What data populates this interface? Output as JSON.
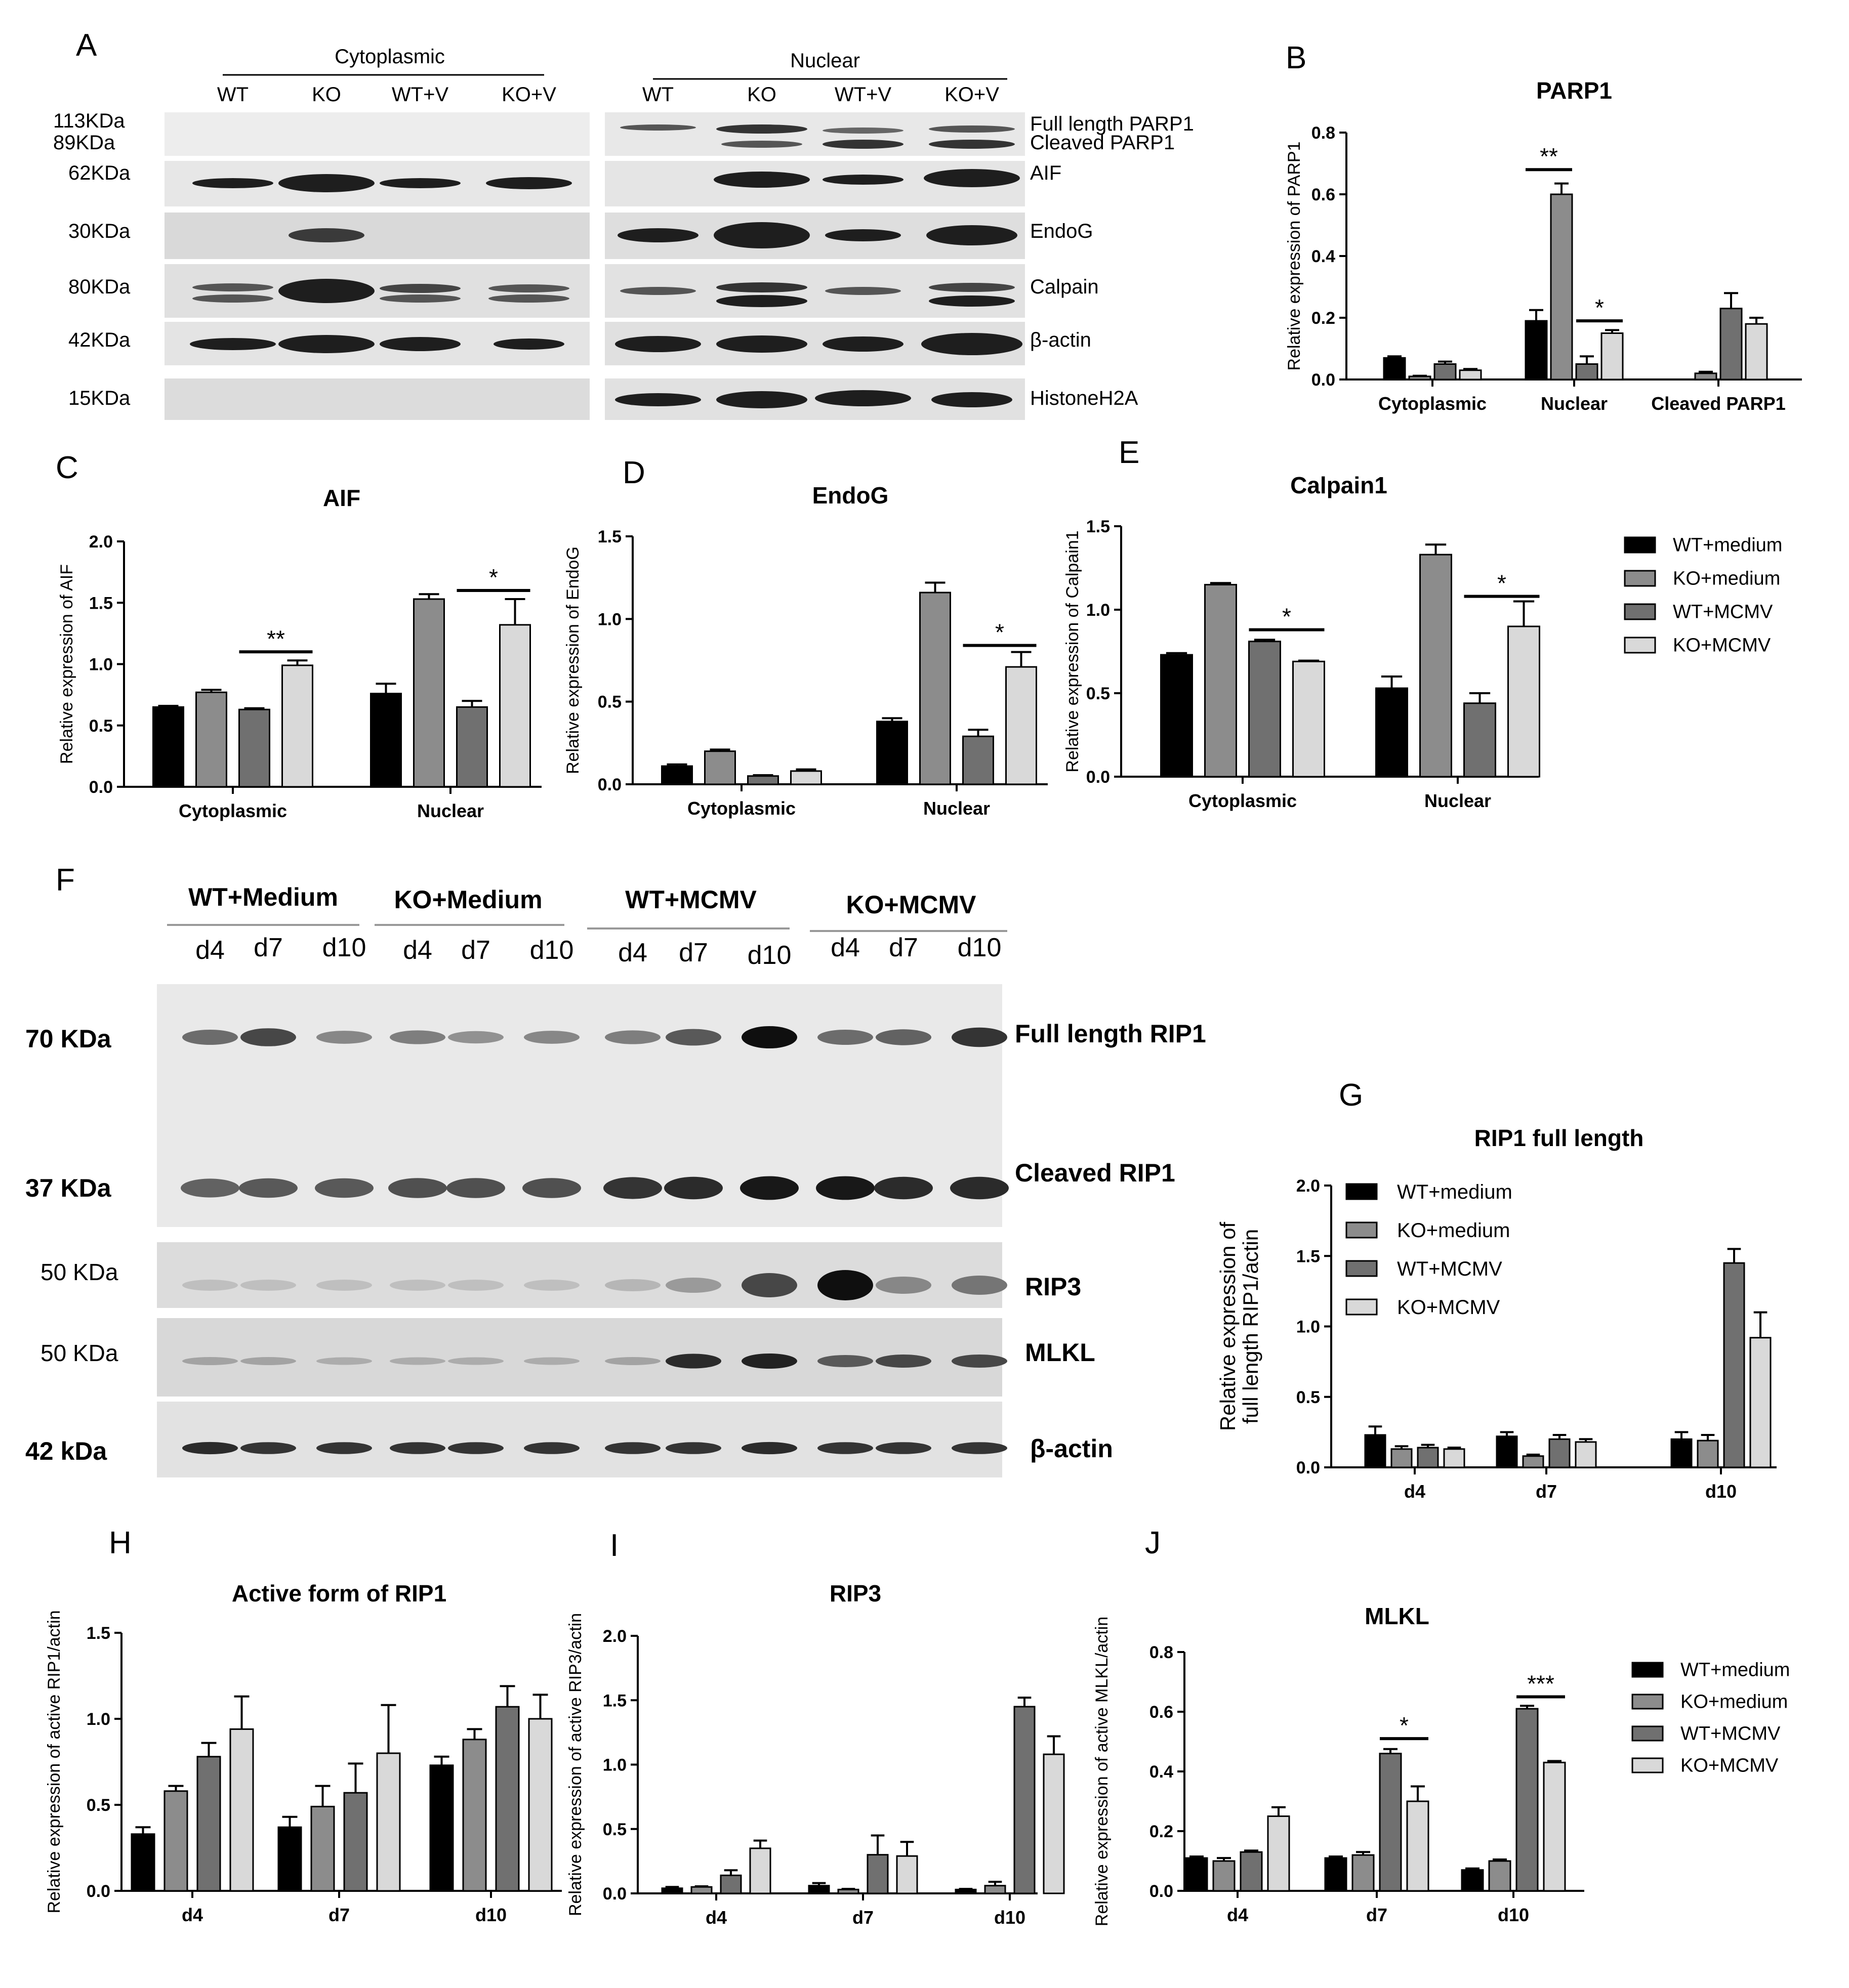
{
  "colors": {
    "wt_medium": "#000000",
    "ko_medium": "#8c8c8c",
    "wt_mcmv": "#707070",
    "ko_mcmv": "#d9d9d9"
  },
  "legend_labels": [
    "WT+medium",
    "KO+medium",
    "WT+MCMV",
    "KO+MCMV"
  ],
  "blotA": {
    "panel": "A",
    "cyto_header": "Cytoplasmic",
    "nuc_header": "Nuclear",
    "lanes": [
      "WT",
      "KO",
      "WT+V",
      "KO+V"
    ],
    "mw": [
      "113KDa",
      "89KDa",
      "62KDa",
      "30KDa",
      "80KDa",
      "42KDa",
      "15KDa"
    ],
    "proteins": [
      "Full length PARP1",
      "Cleaved PARP1",
      "AIF",
      "EndoG",
      "Calpain",
      "β-actin",
      "HistoneH2A"
    ]
  },
  "blotF": {
    "panel": "F",
    "groups": [
      "WT+Medium",
      "KO+Medium",
      "WT+MCMV",
      "KO+MCMV"
    ],
    "days": [
      "d4",
      "d7",
      "d10",
      "d4",
      "d7",
      "d10",
      "d4",
      "d7",
      "d10",
      "d4",
      "d7",
      "d10"
    ],
    "mw": [
      "70 KDa",
      "37 KDa",
      "50 KDa",
      "50 KDa",
      "42 kDa"
    ],
    "proteins": [
      "Full length RIP1",
      "Cleaved RIP1",
      "RIP3",
      "MLKL",
      "β-actin"
    ]
  },
  "chart_data": [
    {
      "panel": "B",
      "type": "bar",
      "title": "PARP1",
      "ylabel": "Relative expression of PARP1",
      "categories": [
        "Cytoplasmic",
        "Nuclear",
        "Cleaved PARP1"
      ],
      "ylim": [
        0,
        0.8
      ],
      "yticks": [
        0.0,
        0.2,
        0.4,
        0.6,
        0.8
      ],
      "ytick_labels": [
        "0.0",
        "0.2",
        "0.4",
        "0.6",
        "0.8"
      ],
      "series": [
        {
          "name": "WT+medium",
          "values": [
            0.07,
            0.19,
            0.0
          ],
          "errors": [
            0.005,
            0.035,
            0.0
          ]
        },
        {
          "name": "KO+medium",
          "values": [
            0.01,
            0.6,
            0.02
          ],
          "errors": [
            0.002,
            0.035,
            0.005
          ]
        },
        {
          "name": "WT+MCMV",
          "values": [
            0.05,
            0.05,
            0.23
          ],
          "errors": [
            0.008,
            0.025,
            0.05
          ]
        },
        {
          "name": "KO+MCMV",
          "values": [
            0.03,
            0.15,
            0.18
          ],
          "errors": [
            0.004,
            0.01,
            0.02
          ]
        }
      ],
      "annotations": [
        {
          "text": "**",
          "category": 1,
          "from": 0,
          "to": 1,
          "y": 0.68
        },
        {
          "text": "*",
          "category": 1,
          "from": 2,
          "to": 3,
          "y": 0.19
        }
      ]
    },
    {
      "panel": "C",
      "type": "bar",
      "title": "AIF",
      "ylabel": "Relative expression of AIF",
      "categories": [
        "Cytoplasmic",
        "Nuclear"
      ],
      "ylim": [
        0,
        2.0
      ],
      "yticks": [
        0.0,
        0.5,
        1.0,
        1.5,
        2.0
      ],
      "ytick_labels": [
        "0.0",
        "0.5",
        "1.0",
        "1.5",
        "2.0"
      ],
      "series": [
        {
          "name": "WT+medium",
          "values": [
            0.65,
            0.76
          ],
          "errors": [
            0.01,
            0.08
          ]
        },
        {
          "name": "KO+medium",
          "values": [
            0.77,
            1.53
          ],
          "errors": [
            0.02,
            0.04
          ]
        },
        {
          "name": "WT+MCMV",
          "values": [
            0.63,
            0.65
          ],
          "errors": [
            0.01,
            0.05
          ]
        },
        {
          "name": "KO+MCMV",
          "values": [
            0.99,
            1.32
          ],
          "errors": [
            0.04,
            0.21
          ]
        }
      ],
      "annotations": [
        {
          "text": "**",
          "category": 0,
          "from": 2,
          "to": 3,
          "y": 1.1
        },
        {
          "text": "*",
          "category": 1,
          "from": 2,
          "to": 3,
          "y": 1.6
        }
      ]
    },
    {
      "panel": "D",
      "type": "bar",
      "title": "EndoG",
      "ylabel": "Relative expression of EndoG",
      "categories": [
        "Cytoplasmic",
        "Nuclear"
      ],
      "ylim": [
        0,
        1.5
      ],
      "yticks": [
        0.0,
        0.5,
        1.0,
        1.5
      ],
      "ytick_labels": [
        "0.0",
        "0.5",
        "1.0",
        "1.5"
      ],
      "series": [
        {
          "name": "WT+medium",
          "values": [
            0.11,
            0.38
          ],
          "errors": [
            0.01,
            0.02
          ]
        },
        {
          "name": "KO+medium",
          "values": [
            0.2,
            1.16
          ],
          "errors": [
            0.01,
            0.06
          ]
        },
        {
          "name": "WT+MCMV",
          "values": [
            0.05,
            0.29
          ],
          "errors": [
            0.005,
            0.04
          ]
        },
        {
          "name": "KO+MCMV",
          "values": [
            0.08,
            0.71
          ],
          "errors": [
            0.01,
            0.09
          ]
        }
      ],
      "annotations": [
        {
          "text": "*",
          "category": 1,
          "from": 2,
          "to": 3,
          "y": 0.84
        }
      ]
    },
    {
      "panel": "E",
      "type": "bar",
      "title": "Calpain1",
      "ylabel": "Relative expression of Calpain1",
      "categories": [
        "Cytoplasmic",
        "Nuclear"
      ],
      "ylim": [
        0,
        1.5
      ],
      "yticks": [
        0.0,
        0.5,
        1.0,
        1.5
      ],
      "ytick_labels": [
        "0.0",
        "0.5",
        "1.0",
        "1.5"
      ],
      "series": [
        {
          "name": "WT+medium",
          "values": [
            0.73,
            0.53
          ],
          "errors": [
            0.01,
            0.07
          ]
        },
        {
          "name": "KO+medium",
          "values": [
            1.15,
            1.33
          ],
          "errors": [
            0.01,
            0.06
          ]
        },
        {
          "name": "WT+MCMV",
          "values": [
            0.81,
            0.44
          ],
          "errors": [
            0.01,
            0.06
          ]
        },
        {
          "name": "KO+MCMV",
          "values": [
            0.69,
            0.9
          ],
          "errors": [
            0.005,
            0.15
          ]
        }
      ],
      "annotations": [
        {
          "text": "*",
          "category": 0,
          "from": 2,
          "to": 3,
          "y": 0.88
        },
        {
          "text": "*",
          "category": 1,
          "from": 2,
          "to": 3,
          "y": 1.08
        }
      ]
    },
    {
      "panel": "G",
      "type": "bar",
      "title": "RIP1 full length",
      "ylabel": "Relative expression of full length RIP1/actin",
      "categories": [
        "d4",
        "d7",
        "d10"
      ],
      "ylim": [
        0,
        2.0
      ],
      "yticks": [
        0.0,
        0.5,
        1.0,
        1.5,
        2.0
      ],
      "ytick_labels": [
        "0.0",
        "0.5",
        "1.0",
        "1.5",
        "2.0"
      ],
      "series": [
        {
          "name": "WT+medium",
          "values": [
            0.23,
            0.22,
            0.2
          ],
          "errors": [
            0.06,
            0.03,
            0.05
          ]
        },
        {
          "name": "KO+medium",
          "values": [
            0.13,
            0.08,
            0.19
          ],
          "errors": [
            0.02,
            0.01,
            0.04
          ]
        },
        {
          "name": "WT+MCMV",
          "values": [
            0.14,
            0.2,
            1.45
          ],
          "errors": [
            0.02,
            0.03,
            0.1
          ]
        },
        {
          "name": "KO+MCMV",
          "values": [
            0.13,
            0.18,
            0.92
          ],
          "errors": [
            0.01,
            0.02,
            0.18
          ]
        }
      ],
      "annotations": []
    },
    {
      "panel": "H",
      "type": "bar",
      "title": "Active form of RIP1",
      "ylabel": "Relative expression of active RIP1/actin",
      "categories": [
        "d4",
        "d7",
        "d10"
      ],
      "ylim": [
        0,
        1.5
      ],
      "yticks": [
        0.0,
        0.5,
        1.0,
        1.5
      ],
      "ytick_labels": [
        "0.0",
        "0.5",
        "1.0",
        "1.5"
      ],
      "series": [
        {
          "name": "WT+medium",
          "values": [
            0.33,
            0.37,
            0.73
          ],
          "errors": [
            0.04,
            0.06,
            0.05
          ]
        },
        {
          "name": "KO+medium",
          "values": [
            0.58,
            0.49,
            0.88
          ],
          "errors": [
            0.03,
            0.12,
            0.06
          ]
        },
        {
          "name": "WT+MCMV",
          "values": [
            0.78,
            0.57,
            1.07
          ],
          "errors": [
            0.08,
            0.17,
            0.12
          ]
        },
        {
          "name": "KO+MCMV",
          "values": [
            0.94,
            0.8,
            1.0
          ],
          "errors": [
            0.19,
            0.28,
            0.14
          ]
        }
      ],
      "annotations": []
    },
    {
      "panel": "I",
      "type": "bar",
      "title": "RIP3",
      "ylabel": "Relative expression of active RIP3/actin",
      "categories": [
        "d4",
        "d7",
        "d10"
      ],
      "ylim": [
        0,
        2.0
      ],
      "yticks": [
        0.0,
        0.5,
        1.0,
        1.5,
        2.0
      ],
      "ytick_labels": [
        "0.0",
        "0.5",
        "1.0",
        "1.5",
        "2.0"
      ],
      "series": [
        {
          "name": "WT+medium",
          "values": [
            0.04,
            0.06,
            0.03
          ],
          "errors": [
            0.01,
            0.02,
            0.005
          ]
        },
        {
          "name": "KO+medium",
          "values": [
            0.05,
            0.03,
            0.06
          ],
          "errors": [
            0.005,
            0.005,
            0.03
          ]
        },
        {
          "name": "WT+MCMV",
          "values": [
            0.14,
            0.3,
            1.45
          ],
          "errors": [
            0.04,
            0.15,
            0.07
          ]
        },
        {
          "name": "KO+MCMV",
          "values": [
            0.35,
            0.29,
            1.08
          ],
          "errors": [
            0.06,
            0.11,
            0.14
          ]
        }
      ],
      "annotations": []
    },
    {
      "panel": "J",
      "type": "bar",
      "title": "MLKL",
      "ylabel": "Relative expression of active MLKL/actin",
      "categories": [
        "d4",
        "d7",
        "d10"
      ],
      "ylim": [
        0,
        0.8
      ],
      "yticks": [
        0.0,
        0.2,
        0.4,
        0.6,
        0.8
      ],
      "ytick_labels": [
        "0.0",
        "0.2",
        "0.4",
        "0.6",
        "0.8"
      ],
      "series": [
        {
          "name": "WT+medium",
          "values": [
            0.11,
            0.11,
            0.07
          ],
          "errors": [
            0.005,
            0.005,
            0.005
          ]
        },
        {
          "name": "KO+medium",
          "values": [
            0.1,
            0.12,
            0.1
          ],
          "errors": [
            0.01,
            0.01,
            0.005
          ]
        },
        {
          "name": "WT+MCMV",
          "values": [
            0.13,
            0.46,
            0.61
          ],
          "errors": [
            0.005,
            0.015,
            0.01
          ]
        },
        {
          "name": "KO+MCMV",
          "values": [
            0.25,
            0.3,
            0.43
          ],
          "errors": [
            0.03,
            0.05,
            0.005
          ]
        }
      ],
      "annotations": [
        {
          "text": "*",
          "category": 1,
          "from": 2,
          "to": 3,
          "y": 0.51
        },
        {
          "text": "***",
          "category": 2,
          "from": 2,
          "to": 3,
          "y": 0.65
        }
      ]
    }
  ]
}
